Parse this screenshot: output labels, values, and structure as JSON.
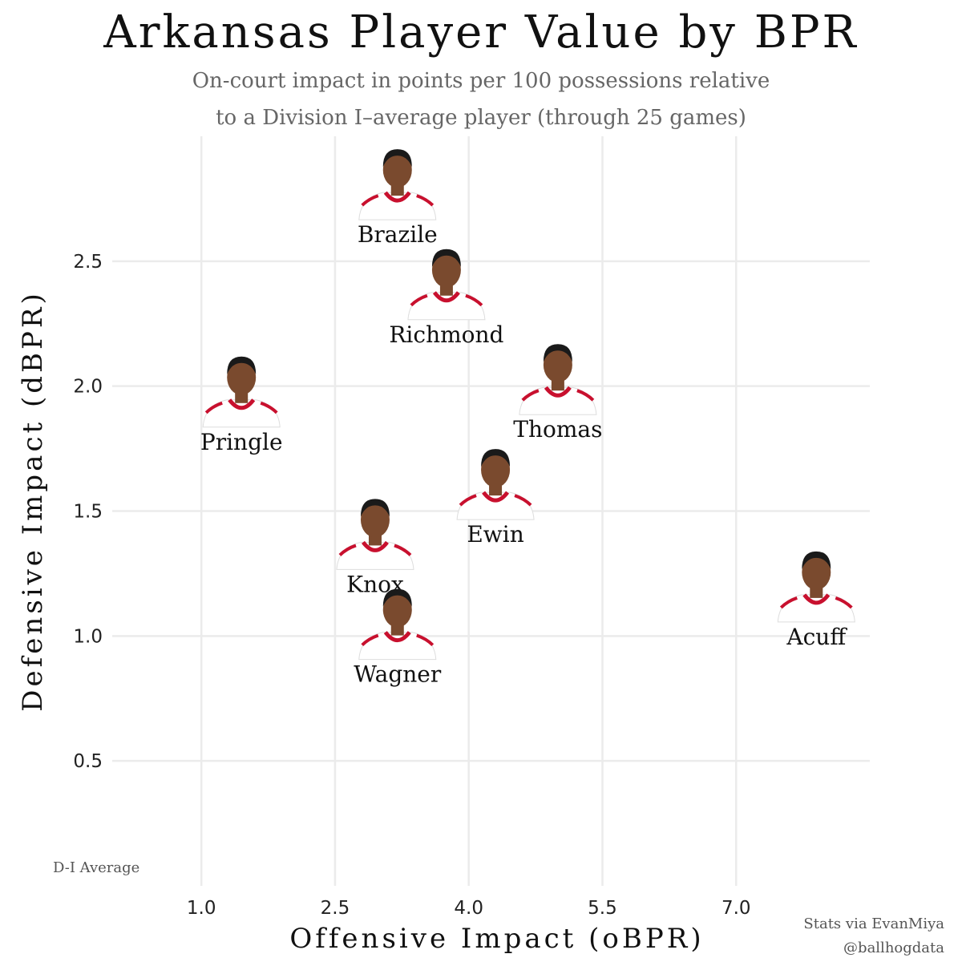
{
  "title": "Arkansas Player Value by BPR",
  "subtitle": [
    "On-court impact in points per 100 possessions relative",
    "to a Division I–average player (through 25 games)"
  ],
  "chart_data": {
    "type": "scatter",
    "xlabel": "Offensive Impact (oBPR)",
    "ylabel": "Defensive Impact (dBPR)",
    "xlim": [
      0.0,
      8.5
    ],
    "ylim": [
      0.0,
      3.0
    ],
    "x_ticks": [
      1.0,
      2.5,
      4.0,
      5.5,
      7.0
    ],
    "x_tick_labels": [
      "1.0",
      "2.5",
      "4.0",
      "5.5",
      "7.0"
    ],
    "y_ticks": [
      0.5,
      1.0,
      1.5,
      2.0,
      2.5
    ],
    "y_tick_labels": [
      "0.5",
      "1.0",
      "1.5",
      "2.0",
      "2.5"
    ],
    "grid": true,
    "marker": "player headshot",
    "reference_label": "D-I Average",
    "points": [
      {
        "label": "Brazile",
        "x": 3.2,
        "y": 2.82
      },
      {
        "label": "Richmond",
        "x": 3.75,
        "y": 2.42
      },
      {
        "label": "Pringle",
        "x": 1.45,
        "y": 1.99
      },
      {
        "label": "Thomas",
        "x": 5.0,
        "y": 2.04
      },
      {
        "label": "Ewin",
        "x": 4.3,
        "y": 1.62
      },
      {
        "label": "Knox",
        "x": 2.95,
        "y": 1.42
      },
      {
        "label": "Wagner",
        "x": 3.2,
        "y": 1.06
      },
      {
        "label": "Acuff",
        "x": 7.9,
        "y": 1.21
      }
    ]
  },
  "credits": [
    "Stats via EvanMiya",
    "@ballhogdata"
  ],
  "colors": {
    "jersey": "#ffffff",
    "trim": "#c8102e",
    "grid": "#ebebeb",
    "skin": "#7a4a2e",
    "hair": "#1a1a1a"
  }
}
